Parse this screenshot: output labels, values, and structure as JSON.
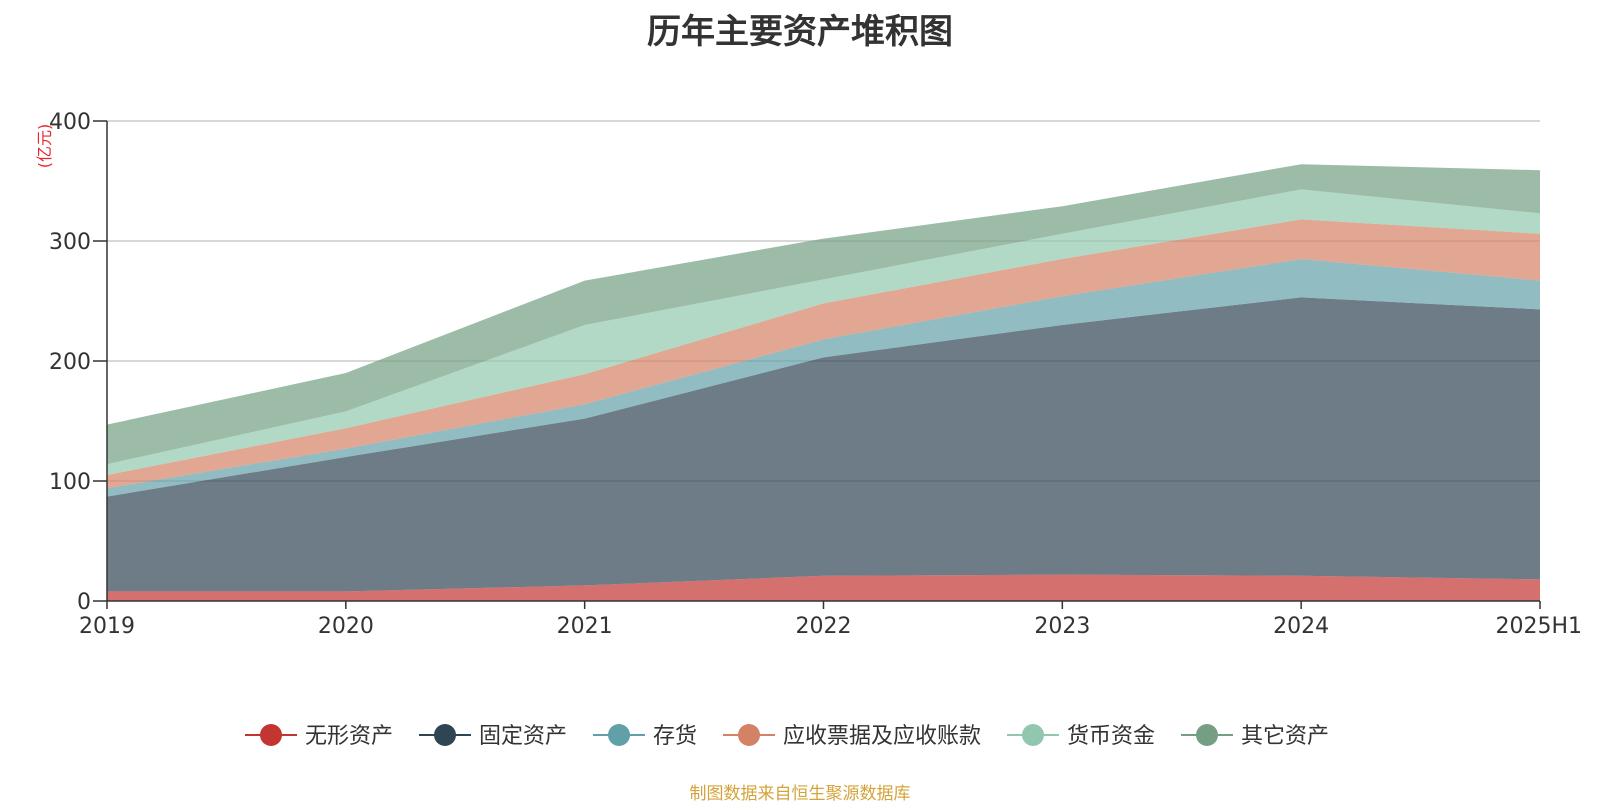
{
  "chart_data": {
    "type": "area",
    "stacked": true,
    "title": "历年主要资产堆积图",
    "unit": "(亿元)",
    "categories": [
      "2019",
      "2020",
      "2021",
      "2022",
      "2023",
      "2024",
      "2025H1"
    ],
    "ylim": [
      0,
      400
    ],
    "yticks": [
      0,
      100,
      200,
      300,
      400
    ],
    "grid": true,
    "legend_position": "bottom",
    "series": [
      {
        "name": "无形资产",
        "color": "#c23531",
        "values": [
          8,
          8,
          13,
          21,
          22,
          21,
          18
        ]
      },
      {
        "name": "固定资产",
        "color": "#2f4554",
        "values": [
          79,
          112,
          139,
          182,
          208,
          232,
          225
        ]
      },
      {
        "name": "存货",
        "color": "#61a0a8",
        "values": [
          7,
          7,
          12,
          15,
          24,
          32,
          24
        ]
      },
      {
        "name": "应收票据及应收账款",
        "color": "#d48265",
        "values": [
          11,
          17,
          25,
          30,
          31,
          33,
          39
        ]
      },
      {
        "name": "货币资金",
        "color": "#91c7ae",
        "values": [
          9,
          14,
          41,
          20,
          21,
          25,
          17
        ]
      },
      {
        "name": "其它资产",
        "color": "#749f83",
        "values": [
          33,
          32,
          37,
          34,
          23,
          21,
          36
        ]
      }
    ]
  },
  "footer": {
    "source": "制图数据来自恒生聚源数据库"
  }
}
